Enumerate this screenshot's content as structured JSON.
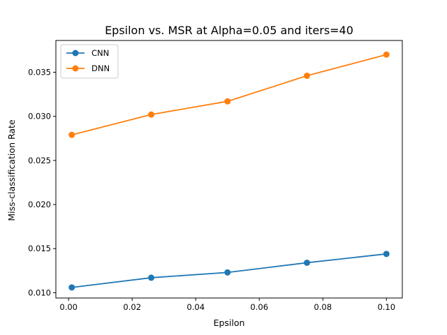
{
  "chart_data": {
    "type": "line",
    "title": "Epsilon vs. MSR at Alpha=0.05 and iters=40",
    "xlabel": "Epsilon",
    "ylabel": "Miss-classification Rate",
    "xlim": [
      -0.004,
      0.105
    ],
    "ylim": [
      0.0094,
      0.0386
    ],
    "xticks": [
      0.0,
      0.02,
      0.04,
      0.06,
      0.08,
      0.1
    ],
    "xtick_labels": [
      "0.00",
      "0.02",
      "0.04",
      "0.06",
      "0.08",
      "0.10"
    ],
    "yticks": [
      0.01,
      0.015,
      0.02,
      0.025,
      0.03,
      0.035
    ],
    "ytick_labels": [
      "0.010",
      "0.015",
      "0.020",
      "0.025",
      "0.030",
      "0.035"
    ],
    "grid": false,
    "legend_position": "upper-left",
    "x": [
      0.001,
      0.026,
      0.05,
      0.075,
      0.1
    ],
    "series": [
      {
        "name": "CNN",
        "color": "#1f77b4",
        "marker": "circle",
        "values": [
          0.0106,
          0.0117,
          0.0123,
          0.0134,
          0.0144
        ]
      },
      {
        "name": "DNN",
        "color": "#ff7f0e",
        "marker": "circle",
        "values": [
          0.0279,
          0.0302,
          0.0317,
          0.0346,
          0.037
        ]
      }
    ]
  }
}
